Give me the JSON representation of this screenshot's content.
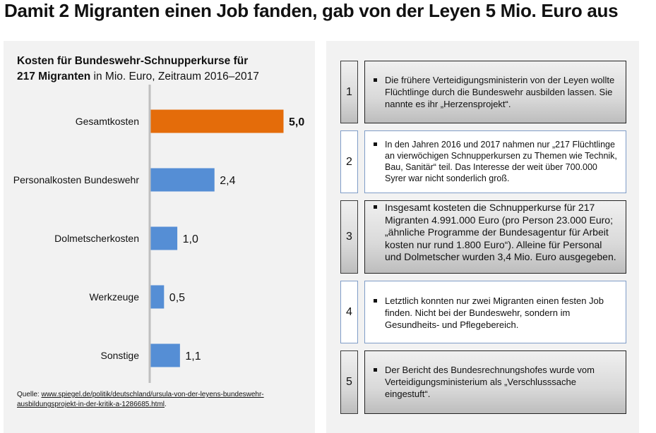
{
  "title": "Damit 2 Migranten einen Job fanden, gab von der Leyen 5 Mio. Euro aus",
  "chart_data": {
    "type": "bar",
    "orientation": "horizontal",
    "title_bold_1": "Kosten für Bundeswehr-Schnupperkurse für",
    "title_bold_2": "217 Migranten",
    "title_rest": " in Mio. Euro, Zeitraum 2016–2017",
    "categories": [
      "Gesamtkosten",
      "Personalkosten Bundeswehr",
      "Dolmetscherkosten",
      "Werkzeuge",
      "Sonstige"
    ],
    "values": [
      5.0,
      2.4,
      1.0,
      0.5,
      1.1
    ],
    "value_labels": [
      "5,0",
      "2,4",
      "1,0",
      "0,5",
      "1,1"
    ],
    "colors": [
      "#e46c0a",
      "#558ed5",
      "#558ed5",
      "#558ed5",
      "#558ed5"
    ],
    "xlim": [
      0,
      5.5
    ],
    "unit": "Mio. Euro",
    "grid": false,
    "legend": "none"
  },
  "source": {
    "label": "Quelle: ",
    "link_line1": "www.spiegel.de/politik/deutschland/ursula-von-der-leyens-bundeswehr-",
    "link_line2": "ausbildungsprojekt-in-der-kritik-a-1286685.html",
    "suffix": "."
  },
  "points": [
    {
      "number": "1",
      "text": "Die frühere Verteidigungsministerin von der Leyen wollte Flüchtlinge durch die Bundeswehr ausbilden lassen. Sie nannte es ihr „Herzensprojekt“."
    },
    {
      "number": "2",
      "text": "In den Jahren 2016 und 2017 nahmen nur „217 Flüchtlinge an vierwöchigen Schnupperkursen zu Themen wie Technik, Bau, Sanitär“ teil. Das Interesse der weit über 700.000 Syrer war nicht sonderlich groß."
    },
    {
      "number": "3",
      "text": "Insgesamt kosteten die Schnupperkurse für 217 Migranten 4.991.000 Euro (pro Person 23.000 Euro; „ähnliche Programme der Bundesagentur für Arbeit kosten nur rund 1.800 Euro“). Alleine für Personal und Dolmetscher wurden 3,4 Mio. Euro ausgegeben."
    },
    {
      "number": "4",
      "text": "Letztlich konnten nur zwei Migranten einen festen Job finden. Nicht bei der Bundeswehr, sondern im Gesundheits- und Pflegebereich."
    },
    {
      "number": "5",
      "text": "Der Bericht des Bundesrechnungshofes wurde vom Verteidigungsministerium als „Verschlusssache eingestuft“."
    }
  ]
}
